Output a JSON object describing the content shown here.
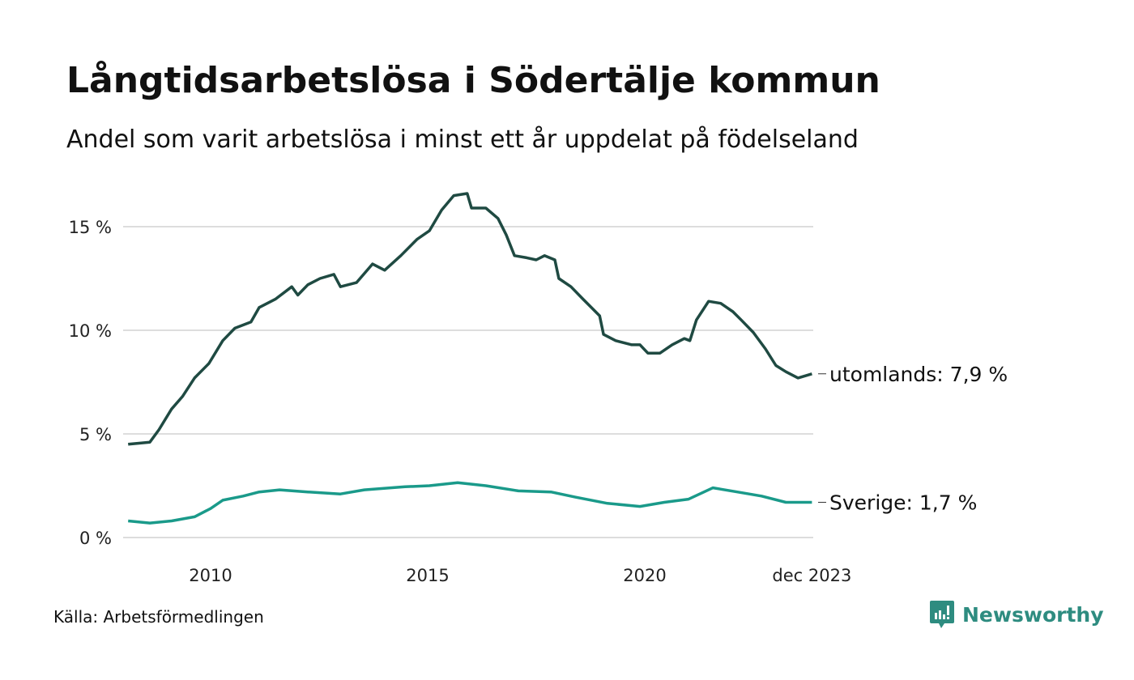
{
  "title": "Långtidsarbetslösa i Södertälje kommun",
  "subtitle": "Andel som varit arbetslösa i minst ett år uppdelat på födelseland",
  "source": "Källa: Arbetsförmedlingen",
  "logo": "Newsworthy",
  "colors": {
    "utomlands": "#1f4a42",
    "sverige": "#1a9a8a",
    "grid": "#dddddd",
    "brand": "#2e8c80"
  },
  "chart_data": {
    "type": "line",
    "title": "Långtidsarbetslösa i Södertälje kommun",
    "xlabel": "",
    "ylabel": "",
    "ylim": [
      0,
      17
    ],
    "xlim": [
      2008,
      2024
    ],
    "grid": true,
    "y_ticks": [
      {
        "value": 0,
        "label": "0 %"
      },
      {
        "value": 5,
        "label": "5 %"
      },
      {
        "value": 10,
        "label": "10 %"
      },
      {
        "value": 15,
        "label": "15 %"
      }
    ],
    "x_ticks": [
      {
        "value": 2010,
        "label": "2010"
      },
      {
        "value": 2015,
        "label": "2015"
      },
      {
        "value": 2020,
        "label": "2020"
      },
      {
        "value": 2023.85,
        "label": "dec 2023"
      }
    ],
    "series": [
      {
        "name": "utomlands",
        "label": "utomlands: 7,9 %",
        "color": "#1f4a42",
        "points": [
          [
            2008.1,
            4.5
          ],
          [
            2008.6,
            4.6
          ],
          [
            2008.81,
            5.2
          ],
          [
            2009.1,
            6.2
          ],
          [
            2009.35,
            6.8
          ],
          [
            2009.63,
            7.7
          ],
          [
            2009.96,
            8.4
          ],
          [
            2010.28,
            9.5
          ],
          [
            2010.56,
            10.1
          ],
          [
            2010.93,
            10.4
          ],
          [
            2011.12,
            11.1
          ],
          [
            2011.49,
            11.5
          ],
          [
            2011.87,
            12.1
          ],
          [
            2012.01,
            11.7
          ],
          [
            2012.24,
            12.2
          ],
          [
            2012.52,
            12.5
          ],
          [
            2012.84,
            12.7
          ],
          [
            2012.99,
            12.1
          ],
          [
            2013.36,
            12.3
          ],
          [
            2013.73,
            13.2
          ],
          [
            2014.01,
            12.9
          ],
          [
            2014.38,
            13.6
          ],
          [
            2014.76,
            14.4
          ],
          [
            2015.04,
            14.8
          ],
          [
            2015.32,
            15.8
          ],
          [
            2015.6,
            16.5
          ],
          [
            2015.91,
            16.6
          ],
          [
            2016.01,
            15.9
          ],
          [
            2016.34,
            15.9
          ],
          [
            2016.62,
            15.4
          ],
          [
            2016.81,
            14.6
          ],
          [
            2017.0,
            13.6
          ],
          [
            2017.28,
            13.5
          ],
          [
            2017.5,
            13.4
          ],
          [
            2017.69,
            13.6
          ],
          [
            2017.93,
            13.4
          ],
          [
            2018.02,
            12.5
          ],
          [
            2018.3,
            12.1
          ],
          [
            2018.58,
            11.5
          ],
          [
            2018.96,
            10.7
          ],
          [
            2019.05,
            9.8
          ],
          [
            2019.33,
            9.5
          ],
          [
            2019.7,
            9.3
          ],
          [
            2019.89,
            9.3
          ],
          [
            2020.07,
            8.9
          ],
          [
            2020.35,
            8.9
          ],
          [
            2020.63,
            9.3
          ],
          [
            2020.91,
            9.6
          ],
          [
            2021.04,
            9.5
          ],
          [
            2021.19,
            10.5
          ],
          [
            2021.47,
            11.4
          ],
          [
            2021.75,
            11.3
          ],
          [
            2022.03,
            10.9
          ],
          [
            2022.22,
            10.5
          ],
          [
            2022.5,
            9.9
          ],
          [
            2022.78,
            9.1
          ],
          [
            2023.02,
            8.3
          ],
          [
            2023.25,
            8.0
          ],
          [
            2023.53,
            7.7
          ],
          [
            2023.85,
            7.9
          ]
        ]
      },
      {
        "name": "Sverige",
        "label": "Sverige: 1,7 %",
        "color": "#1a9a8a",
        "points": [
          [
            2008.1,
            0.8
          ],
          [
            2008.6,
            0.7
          ],
          [
            2009.1,
            0.8
          ],
          [
            2009.63,
            1.0
          ],
          [
            2010.0,
            1.4
          ],
          [
            2010.28,
            1.8
          ],
          [
            2010.75,
            2.0
          ],
          [
            2011.12,
            2.2
          ],
          [
            2011.59,
            2.3
          ],
          [
            2012.24,
            2.2
          ],
          [
            2012.99,
            2.1
          ],
          [
            2013.54,
            2.3
          ],
          [
            2014.48,
            2.45
          ],
          [
            2015.04,
            2.5
          ],
          [
            2015.69,
            2.65
          ],
          [
            2016.34,
            2.5
          ],
          [
            2017.09,
            2.25
          ],
          [
            2017.84,
            2.2
          ],
          [
            2018.4,
            1.95
          ],
          [
            2019.14,
            1.65
          ],
          [
            2019.89,
            1.5
          ],
          [
            2020.45,
            1.7
          ],
          [
            2021.01,
            1.85
          ],
          [
            2021.57,
            2.4
          ],
          [
            2022.13,
            2.2
          ],
          [
            2022.69,
            2.0
          ],
          [
            2023.25,
            1.7
          ],
          [
            2023.85,
            1.7
          ]
        ]
      }
    ]
  }
}
